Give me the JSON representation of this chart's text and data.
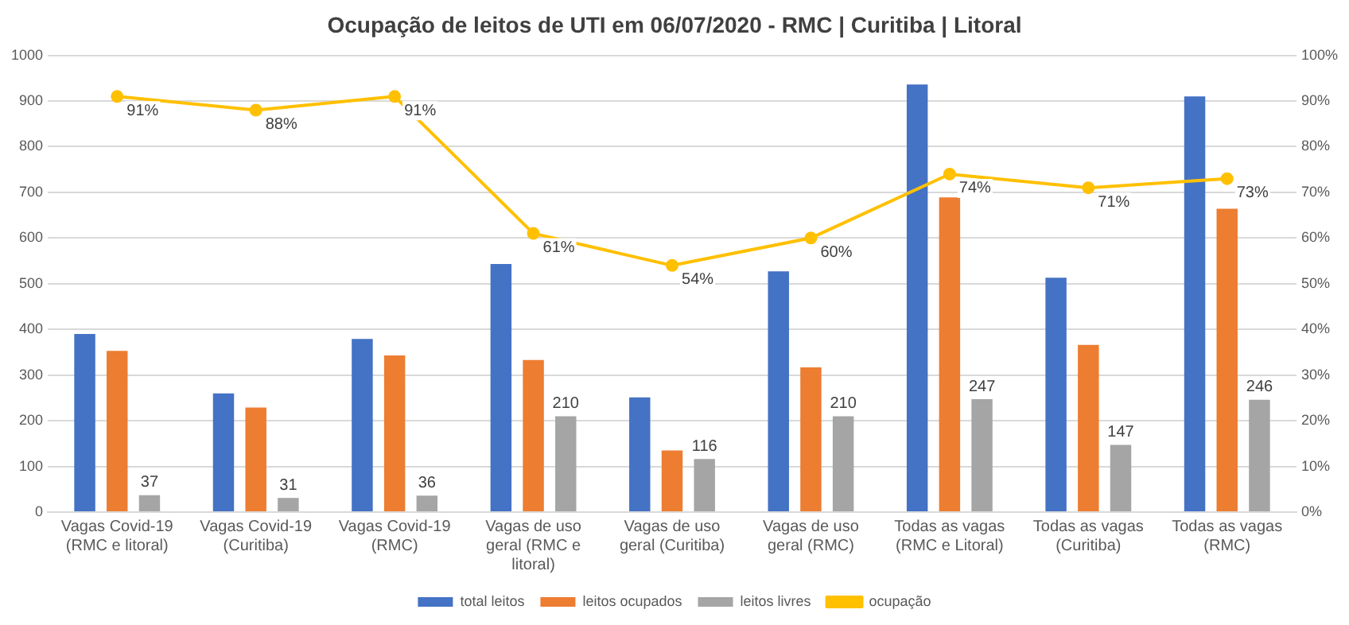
{
  "chart_data": {
    "type": "bar",
    "title": "Ocupação de leitos de UTI em 06/07/2020 - RMC | Curitiba | Litoral",
    "categories": [
      "Vagas Covid-19 (RMC e litoral)",
      "Vagas Covid-19 (Curitiba)",
      "Vagas Covid-19 (RMC)",
      "Vagas de uso geral (RMC e litoral)",
      "Vagas de uso geral (Curitiba)",
      "Vagas de uso geral (RMC)",
      "Todas as vagas (RMC e Litoral)",
      "Todas as vagas (Curitiba)",
      "Todas as vagas (RMC)"
    ],
    "series": [
      {
        "name": "total leitos",
        "color": "#4472c4",
        "values": [
          390,
          260,
          379,
          543,
          251,
          527,
          936,
          513,
          910
        ]
      },
      {
        "name": "leitos ocupados",
        "color": "#ed7d31",
        "values": [
          353,
          229,
          343,
          333,
          135,
          317,
          689,
          366,
          664
        ]
      },
      {
        "name": "leitos livres",
        "color": "#a5a5a5",
        "values": [
          37,
          31,
          36,
          210,
          116,
          210,
          247,
          147,
          246
        ],
        "value_labels": [
          "37",
          "31",
          "36",
          "210",
          "116",
          "210",
          "247",
          "147",
          "246"
        ]
      },
      {
        "name": "ocupação",
        "type": "line",
        "axis": "y2",
        "color": "#ffc000",
        "marker": "circle",
        "values": [
          91,
          88,
          91,
          61,
          54,
          60,
          74,
          71,
          73
        ],
        "value_labels": [
          "91%",
          "88%",
          "91%",
          "61%",
          "54%",
          "60%",
          "74%",
          "71%",
          "73%"
        ]
      }
    ],
    "ylim": [
      0,
      1000
    ],
    "yticks": [
      0,
      100,
      200,
      300,
      400,
      500,
      600,
      700,
      800,
      900,
      1000
    ],
    "y2lim": [
      0,
      100
    ],
    "y2ticks": [
      {
        "value": 0,
        "label": "0%"
      },
      {
        "value": 10,
        "label": "10%"
      },
      {
        "value": 20,
        "label": "20%"
      },
      {
        "value": 30,
        "label": "30%"
      },
      {
        "value": 40,
        "label": "40%"
      },
      {
        "value": 50,
        "label": "50%"
      },
      {
        "value": 60,
        "label": "60%"
      },
      {
        "value": 70,
        "label": "70%"
      },
      {
        "value": 80,
        "label": "80%"
      },
      {
        "value": 90,
        "label": "90%"
      },
      {
        "value": 100,
        "label": "100%"
      }
    ],
    "grid": "y",
    "legend": "bottom"
  }
}
